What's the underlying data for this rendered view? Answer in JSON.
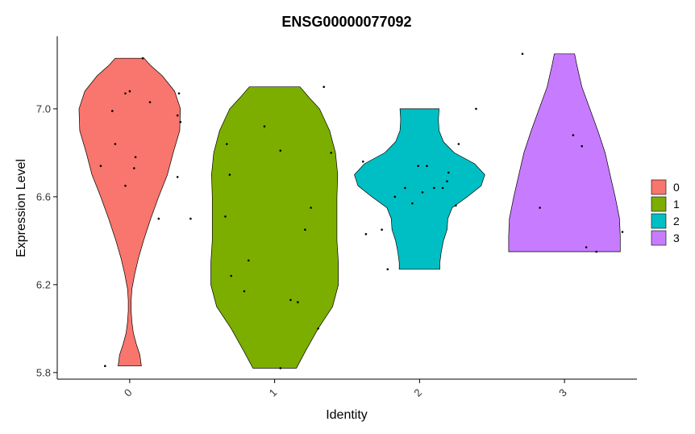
{
  "chart_data": {
    "type": "violin",
    "title": "ENSG00000077092",
    "xlabel": "Identity",
    "ylabel": "Expression Level",
    "categories": [
      "0",
      "1",
      "2",
      "3"
    ],
    "ylim": [
      5.77,
      7.33
    ],
    "yticks": [
      5.8,
      6.2,
      6.6,
      7.0
    ],
    "ytick_labels": [
      "5.8",
      "6.2",
      "6.6",
      "7.0"
    ],
    "legend_position": "right",
    "colors": [
      "#F8766D",
      "#7CAE00",
      "#00BFC4",
      "#C77CFF"
    ],
    "series": [
      {
        "name": "0",
        "profile": [
          [
            5.83,
            0.16
          ],
          [
            5.88,
            0.14
          ],
          [
            5.93,
            0.09
          ],
          [
            5.98,
            0.05
          ],
          [
            6.03,
            0.03
          ],
          [
            6.08,
            0.02
          ],
          [
            6.13,
            0.02
          ],
          [
            6.18,
            0.03
          ],
          [
            6.25,
            0.07
          ],
          [
            6.32,
            0.12
          ],
          [
            6.4,
            0.19
          ],
          [
            6.5,
            0.29
          ],
          [
            6.6,
            0.4
          ],
          [
            6.7,
            0.52
          ],
          [
            6.8,
            0.6
          ],
          [
            6.9,
            0.69
          ],
          [
            7.0,
            0.7
          ],
          [
            7.08,
            0.62
          ],
          [
            7.15,
            0.45
          ],
          [
            7.2,
            0.28
          ],
          [
            7.23,
            0.2
          ]
        ],
        "points": [
          [
            0.83,
            5.83
          ],
          [
            0.8,
            6.74
          ],
          [
            0.9,
            6.84
          ],
          [
            0.88,
            6.99
          ],
          [
            0.97,
            7.07
          ],
          [
            1.0,
            7.08
          ],
          [
            0.97,
            6.65
          ],
          [
            1.04,
            6.78
          ],
          [
            1.03,
            6.73
          ],
          [
            1.14,
            7.03
          ],
          [
            1.09,
            7.23
          ],
          [
            1.2,
            6.5
          ],
          [
            1.33,
            6.97
          ],
          [
            1.35,
            6.94
          ],
          [
            1.33,
            6.69
          ],
          [
            1.42,
            6.5
          ],
          [
            1.34,
            7.07
          ]
        ]
      },
      {
        "name": "1",
        "profile": [
          [
            5.82,
            0.3
          ],
          [
            5.9,
            0.43
          ],
          [
            6.0,
            0.6
          ],
          [
            6.1,
            0.8
          ],
          [
            6.2,
            0.88
          ],
          [
            6.3,
            0.88
          ],
          [
            6.4,
            0.86
          ],
          [
            6.5,
            0.86
          ],
          [
            6.6,
            0.86
          ],
          [
            6.7,
            0.87
          ],
          [
            6.8,
            0.84
          ],
          [
            6.9,
            0.76
          ],
          [
            7.0,
            0.62
          ],
          [
            7.05,
            0.48
          ],
          [
            7.1,
            0.35
          ]
        ],
        "points": [
          [
            0.67,
            6.84
          ],
          [
            0.69,
            6.7
          ],
          [
            0.66,
            6.51
          ],
          [
            0.7,
            6.24
          ],
          [
            0.82,
            6.31
          ],
          [
            0.79,
            6.17
          ],
          [
            0.93,
            6.92
          ],
          [
            1.04,
            6.81
          ],
          [
            1.11,
            6.13
          ],
          [
            1.16,
            6.12
          ],
          [
            1.21,
            6.45
          ],
          [
            1.25,
            6.55
          ],
          [
            1.3,
            6.0
          ],
          [
            1.34,
            7.1
          ],
          [
            1.39,
            6.8
          ],
          [
            1.04,
            5.82
          ]
        ]
      },
      {
        "name": "2",
        "profile": [
          [
            6.27,
            0.28
          ],
          [
            6.3,
            0.28
          ],
          [
            6.35,
            0.3
          ],
          [
            6.4,
            0.33
          ],
          [
            6.45,
            0.38
          ],
          [
            6.5,
            0.39
          ],
          [
            6.55,
            0.45
          ],
          [
            6.6,
            0.66
          ],
          [
            6.65,
            0.85
          ],
          [
            6.7,
            0.9
          ],
          [
            6.75,
            0.76
          ],
          [
            6.8,
            0.48
          ],
          [
            6.85,
            0.33
          ],
          [
            6.9,
            0.27
          ],
          [
            6.95,
            0.26
          ],
          [
            7.0,
            0.27
          ]
        ],
        "points": [
          [
            0.61,
            6.76
          ],
          [
            0.63,
            6.43
          ],
          [
            0.78,
            6.27
          ],
          [
            0.74,
            6.45
          ],
          [
            0.83,
            6.6
          ],
          [
            0.9,
            6.64
          ],
          [
            0.95,
            6.57
          ],
          [
            0.99,
            6.74
          ],
          [
            1.02,
            6.62
          ],
          [
            1.05,
            6.74
          ],
          [
            1.1,
            6.64
          ],
          [
            1.16,
            6.64
          ],
          [
            1.19,
            6.67
          ],
          [
            1.2,
            6.71
          ],
          [
            1.25,
            6.56
          ],
          [
            1.27,
            6.84
          ],
          [
            1.39,
            7.0
          ]
        ]
      },
      {
        "name": "3",
        "profile": [
          [
            6.35,
            0.77
          ],
          [
            6.42,
            0.77
          ],
          [
            6.5,
            0.76
          ],
          [
            6.6,
            0.7
          ],
          [
            6.7,
            0.63
          ],
          [
            6.8,
            0.56
          ],
          [
            6.9,
            0.46
          ],
          [
            7.0,
            0.35
          ],
          [
            7.1,
            0.24
          ],
          [
            7.2,
            0.17
          ],
          [
            7.25,
            0.14
          ]
        ],
        "points": [
          [
            0.71,
            7.25
          ],
          [
            0.83,
            6.55
          ],
          [
            1.06,
            6.88
          ],
          [
            1.12,
            6.83
          ],
          [
            1.15,
            6.37
          ],
          [
            1.22,
            6.35
          ],
          [
            1.4,
            6.44
          ]
        ]
      }
    ]
  }
}
